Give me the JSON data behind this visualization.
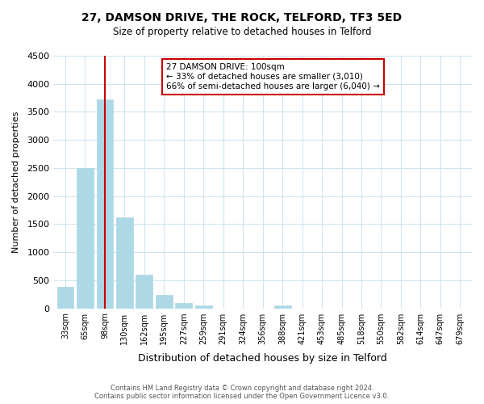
{
  "title": "27, DAMSON DRIVE, THE ROCK, TELFORD, TF3 5ED",
  "subtitle": "Size of property relative to detached houses in Telford",
  "xlabel": "Distribution of detached houses by size in Telford",
  "ylabel": "Number of detached properties",
  "bar_labels": [
    "33sqm",
    "65sqm",
    "98sqm",
    "130sqm",
    "162sqm",
    "195sqm",
    "227sqm",
    "259sqm",
    "291sqm",
    "324sqm",
    "356sqm",
    "388sqm",
    "421sqm",
    "453sqm",
    "485sqm",
    "518sqm",
    "550sqm",
    "582sqm",
    "614sqm",
    "647sqm",
    "679sqm"
  ],
  "bar_values": [
    380,
    2500,
    3720,
    1620,
    600,
    240,
    90,
    50,
    0,
    0,
    0,
    50,
    0,
    0,
    0,
    0,
    0,
    0,
    0,
    0,
    0
  ],
  "property_bar_index": 2,
  "bar_color": "#add8e6",
  "highlight_line_color": "#cc0000",
  "ylim": [
    0,
    4500
  ],
  "yticks": [
    0,
    500,
    1000,
    1500,
    2000,
    2500,
    3000,
    3500,
    4000,
    4500
  ],
  "annotation_title": "27 DAMSON DRIVE: 100sqm",
  "annotation_line1": "← 33% of detached houses are smaller (3,010)",
  "annotation_line2": "66% of semi-detached houses are larger (6,040) →",
  "footer_line1": "Contains HM Land Registry data © Crown copyright and database right 2024.",
  "footer_line2": "Contains public sector information licensed under the Open Government Licence v3.0.",
  "bg_color": "#ffffff",
  "grid_color": "#d0e4f0",
  "annotation_box_color": "#ffffff",
  "annotation_box_edge": "#cc0000"
}
